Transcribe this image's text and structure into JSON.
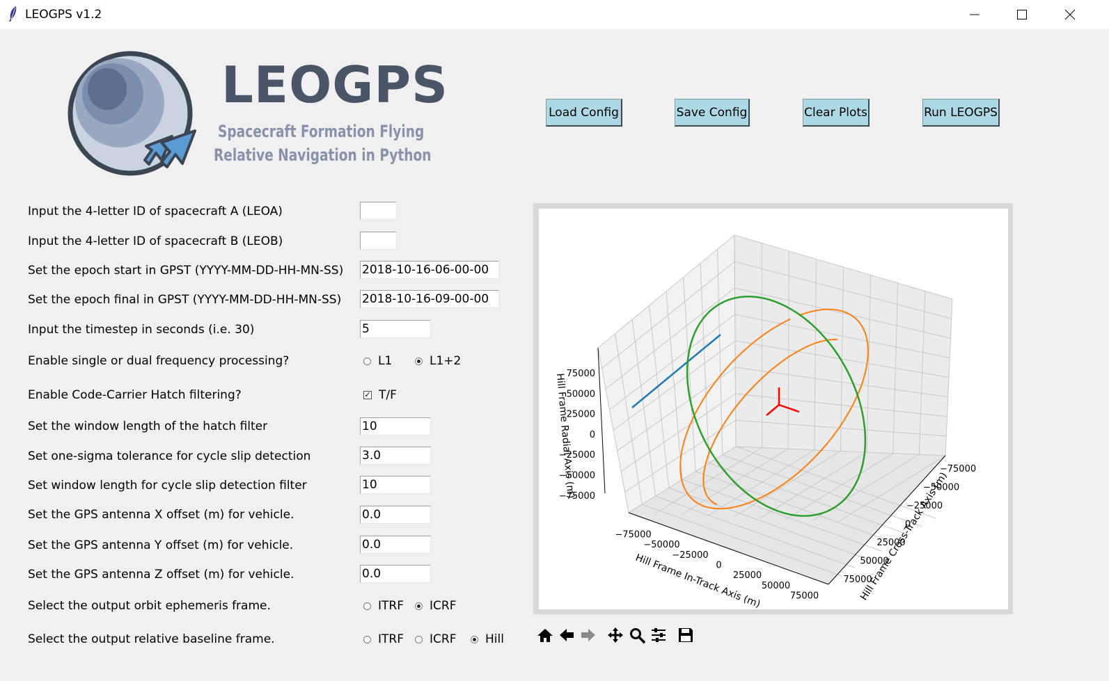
{
  "window": {
    "title": "LEOGPS v1.2",
    "icon": "feather-icon"
  },
  "logo": {
    "title": "LEOGPS",
    "subtitle_line1": "Spacecraft Formation Flying",
    "subtitle_line2": "Relative Navigation in Python"
  },
  "toolbar_buttons": {
    "load": "Load Config",
    "save": "Save Config",
    "clear": "Clear Plots",
    "run": "Run LEOGPS"
  },
  "form": {
    "leoa_label": "Input the 4-letter ID of spacecraft A (LEOA)",
    "leoa_value": "",
    "leob_label": "Input the 4-letter ID of spacecraft B (LEOB)",
    "leob_value": "",
    "epoch_start_label": "Set the epoch start in GPST (YYYY-MM-DD-HH-MN-SS)",
    "epoch_start_value": "2018-10-16-06-00-00",
    "epoch_final_label": "Set the epoch final in GPST (YYYY-MM-DD-HH-MN-SS)",
    "epoch_final_value": "2018-10-16-09-00-00",
    "timestep_label": "Input the timestep in seconds (i.e. 30)",
    "timestep_value": "5",
    "freq_label": "Enable single or dual frequency processing?",
    "freq_options": [
      "L1",
      "L1+2"
    ],
    "freq_selected": "L1+2",
    "hatch_label": "Enable Code-Carrier Hatch filtering?",
    "hatch_option": "T/F",
    "hatch_checked": true,
    "hatch_window_label": "Set the window length of the hatch filter",
    "hatch_window_value": "10",
    "sigma_label": "Set one-sigma tolerance for cycle slip detection",
    "sigma_value": "3.0",
    "slip_window_label": "Set window length for cycle slip detection filter",
    "slip_window_value": "10",
    "ant_x_label": "Set the GPS antenna X offset (m) for vehicle.",
    "ant_x_value": "0.0",
    "ant_y_label": "Set the GPS antenna Y offset (m) for vehicle.",
    "ant_y_value": "0.0",
    "ant_z_label": "Set the GPS antenna Z offset (m) for vehicle.",
    "ant_z_value": "0.0",
    "orbit_frame_label": "Select the output orbit ephemeris frame.",
    "orbit_frame_options": [
      "ITRF",
      "ICRF"
    ],
    "orbit_frame_selected": "ICRF",
    "baseline_frame_label": "Select the output relative baseline frame.",
    "baseline_frame_options": [
      "ITRF",
      "ICRF",
      "Hill"
    ],
    "baseline_frame_selected": "Hill"
  },
  "chart_data": {
    "type": "line",
    "projection": "3d",
    "xlabel": "Hill Frame In-Track Axis (m)",
    "ylabel": "Hill Frame Cross-Track Axis (m)",
    "zlabel": "Hill Frame Radial Axis (m)",
    "xticks": [
      "−75000",
      "−50000",
      "−25000",
      "0",
      "25000",
      "50000",
      "75000"
    ],
    "yticks": [
      "−75000",
      "−50000",
      "−25000",
      "0",
      "25000",
      "50000",
      "75000"
    ],
    "zticks": [
      "75000",
      "50000",
      "25000",
      "0",
      "−25000",
      "−50000",
      "−75000"
    ],
    "xlim": [
      -90000,
      90000
    ],
    "ylim": [
      -90000,
      90000
    ],
    "zlim": [
      -90000,
      90000
    ],
    "grid": true,
    "series": [
      {
        "color": "#1f77b4",
        "kind": "line segment"
      },
      {
        "color": "#ff7f0e",
        "kind": "open ellipse"
      },
      {
        "color": "#2ca02c",
        "kind": "closed ellipse"
      }
    ],
    "origin_axes_color": "#ff0000"
  },
  "nav_toolbar": {
    "icons": [
      "home-icon",
      "back-icon",
      "forward-icon",
      "pan-icon",
      "zoom-icon",
      "configure-icon",
      "save-figure-icon"
    ]
  }
}
